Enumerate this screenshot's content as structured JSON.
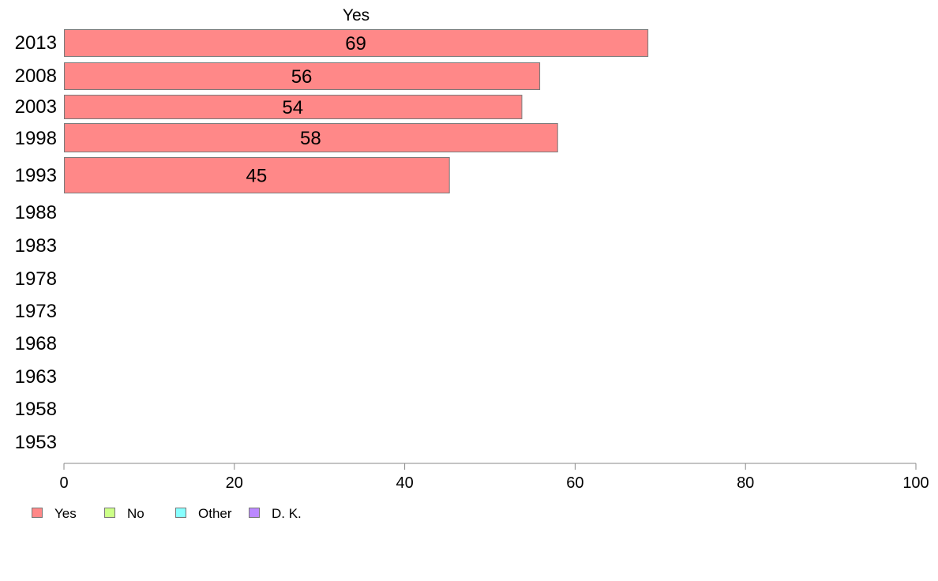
{
  "chart_data": {
    "type": "bar",
    "orientation": "horizontal",
    "title": "Yes",
    "categories": [
      "2013",
      "2008",
      "2003",
      "1998",
      "1993",
      "1988",
      "1983",
      "1978",
      "1973",
      "1968",
      "1963",
      "1958",
      "1953"
    ],
    "series": [
      {
        "name": "Yes",
        "values": [
          68.5,
          55.8,
          53.7,
          57.9,
          45.2,
          null,
          null,
          null,
          null,
          null,
          null,
          null,
          null
        ],
        "labels": [
          "69",
          "56",
          "54",
          "58",
          "45",
          "",
          "",
          "",
          "",
          "",
          "",
          "",
          ""
        ]
      }
    ],
    "xlim": [
      0,
      100
    ],
    "xticks": [
      "0",
      "20",
      "40",
      "60",
      "80",
      "100"
    ],
    "legend": {
      "position": "bottom-left",
      "items": [
        {
          "label": "Yes",
          "color": "#ff8888"
        },
        {
          "label": "No",
          "color": "#ccff88"
        },
        {
          "label": "Other",
          "color": "#88ffff"
        },
        {
          "label": "D. K.",
          "color": "#bb88ff"
        }
      ]
    },
    "colors": {
      "bar": "#ff8888",
      "bar_border": "#7a7a7a",
      "axis": "#888888"
    },
    "grid": false
  }
}
